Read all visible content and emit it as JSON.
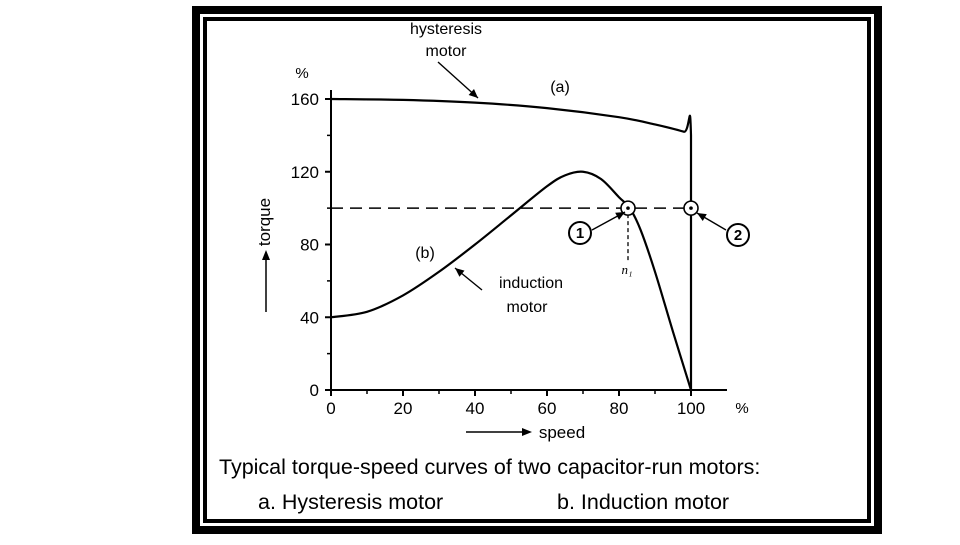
{
  "colors": {
    "ink": "#000000",
    "paper": "#ffffff",
    "frame": "#000000"
  },
  "chart_data": {
    "type": "line",
    "title": "",
    "xlabel": "speed",
    "ylabel": "torque",
    "x_unit": "%",
    "y_unit": "%",
    "xlim": [
      0,
      110
    ],
    "ylim": [
      0,
      170
    ],
    "x_ticks": [
      0,
      20,
      40,
      60,
      80,
      100
    ],
    "y_ticks": [
      0,
      40,
      80,
      120,
      160
    ],
    "x_tick_labels": [
      "0",
      "20",
      "40",
      "60",
      "80",
      "100"
    ],
    "y_tick_labels": [
      "0",
      "40",
      "80",
      "120",
      "160"
    ],
    "series": [
      {
        "name": "hysteresis motor",
        "tag": "(a)",
        "x": [
          0,
          20,
          40,
          60,
          80,
          90,
          98,
          100,
          100
        ],
        "y": [
          160,
          159.5,
          158,
          155,
          150,
          146,
          142,
          140,
          0
        ]
      },
      {
        "name": "induction motor",
        "tag": "(b)",
        "x": [
          0,
          10,
          20,
          30,
          40,
          50,
          60,
          65,
          70,
          75,
          80,
          83,
          86,
          90,
          95,
          100
        ],
        "y": [
          40,
          43,
          52,
          65,
          80,
          96,
          112,
          118,
          120,
          116,
          106,
          100,
          88,
          65,
          32,
          0
        ]
      }
    ],
    "reference_line": {
      "y": 100,
      "style": "dashed",
      "x_range": [
        0,
        100
      ]
    },
    "operating_points": [
      {
        "label": "1",
        "x": 82.5,
        "y": 100
      },
      {
        "label": "2",
        "x": 100,
        "y": 100
      }
    ],
    "slip_marker": {
      "x": 82.5,
      "text": "n₁"
    },
    "annotations": {
      "hysteresis_line1": "hysteresis",
      "hysteresis_line2": "motor",
      "induction_line1": "induction",
      "induction_line2": "motor",
      "tag_a": "(a)",
      "tag_b": "(b)",
      "point1": "1",
      "point2": "2",
      "x_unit_label": "%",
      "y_unit_label": "%"
    }
  },
  "caption": {
    "title": "Typical torque-speed curves of two capacitor-run motors:",
    "item_a": "a.  Hysteresis motor",
    "item_b": "b.  Induction motor"
  }
}
